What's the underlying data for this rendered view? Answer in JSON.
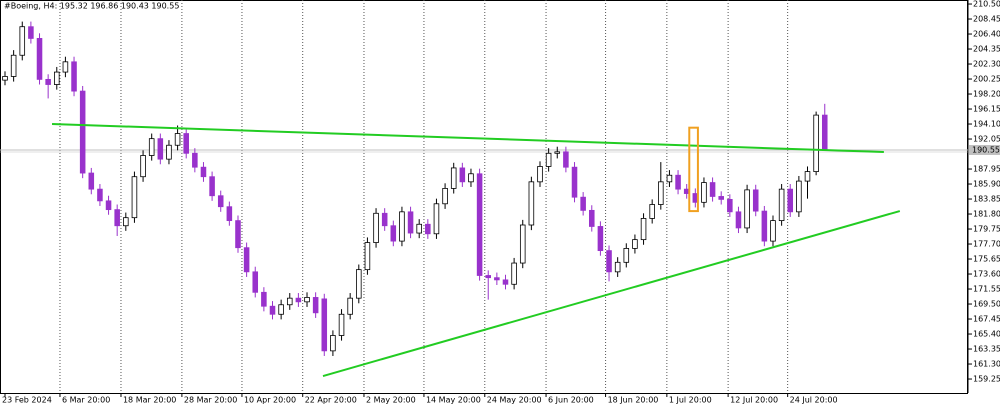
{
  "chart_data": {
    "type": "candlestick",
    "title": "#Boeing, H4:  195.32 196.86 190.43 190.55",
    "up_color": "#ffffff",
    "down_color": "#9932cc",
    "bid_color": "#c0c0c0",
    "xlim": [
      -0.58,
      111.6
    ],
    "ylim": [
      157.34,
      211.05
    ],
    "xgrid": true,
    "xticks": [
      {
        "value": 0,
        "label": "23 Feb 2024"
      },
      {
        "value": 6.37,
        "label": "6 Mar 20:00"
      },
      {
        "value": 13.44,
        "label": "18 Mar 20:00"
      },
      {
        "value": 20.5,
        "label": "28 Mar 20:00"
      },
      {
        "value": 27.46,
        "label": "10 Apr 20:00"
      },
      {
        "value": 34.5,
        "label": "22 Apr 20:00"
      },
      {
        "value": 41.6,
        "label": "2 May 20:00"
      },
      {
        "value": 48.55,
        "label": "14 May 20:00"
      },
      {
        "value": 55.6,
        "label": "24 May 20:00"
      },
      {
        "value": 62.7,
        "label": "6 Jun 20:00"
      },
      {
        "value": 69.6,
        "label": "18 Jun 20:00"
      },
      {
        "value": 76.7,
        "label": "1 Jul 20:00"
      },
      {
        "value": 83.8,
        "label": "12 Jul 20:00"
      },
      {
        "value": 90.7,
        "label": "24 Jul 20:00"
      }
    ],
    "yticks": [
      {
        "value": 210.5,
        "label": "210.50"
      },
      208.45,
      {
        "value": 206.4,
        "label": "206.40"
      },
      204.35,
      {
        "value": 202.3,
        "label": "202.30"
      },
      200.25,
      {
        "value": 198.2,
        "label": "198.20"
      },
      196.15,
      {
        "value": 194.1,
        "label": "194.10"
      },
      192.05,
      187.95,
      {
        "value": 185.9,
        "label": "185.90"
      },
      183.85,
      {
        "value": 181.8,
        "label": "181.80"
      },
      179.75,
      {
        "value": 177.7,
        "label": "177.70"
      },
      175.65,
      {
        "value": 173.6,
        "label": "173.60"
      },
      171.55,
      {
        "value": 169.5,
        "label": "169.50"
      },
      167.45,
      {
        "value": 165.4,
        "label": "165.40"
      },
      163.35,
      {
        "value": 161.3,
        "label": "161.30"
      },
      159.25
    ],
    "open": [
      200.1,
      200.6,
      203.5,
      207.4,
      205.8,
      200.2,
      199.5,
      201.2,
      202.6,
      198.6,
      187.4,
      185.2,
      183.6,
      182.4,
      180.2,
      181.3,
      186.9,
      189.8,
      192.1,
      189.3,
      191.2,
      192.8,
      190.1,
      188.2,
      186.9,
      184.3,
      182.8,
      180.9,
      177.2,
      173.9,
      171.1,
      169.2,
      168.1,
      169.4,
      170.3,
      169.8,
      170.4,
      170.2,
      163.1,
      165.2,
      168.1,
      170.3,
      174.2,
      177.9,
      181.9,
      180.2,
      178.1,
      182.1,
      179.2,
      180.4,
      179.1,
      183.2,
      185.3,
      188.1,
      186.2,
      187.3,
      173.4,
      173.1,
      172.8,
      172.2,
      175.1,
      180.3,
      186.2,
      188.3,
      190.1,
      190.3,
      188.2,
      184.1,
      182.3,
      180.1,
      176.8,
      173.9,
      175.2,
      177.1,
      178.3,
      181.2,
      183.1,
      186.2,
      187.1,
      185.2,
      184.6,
      183.4,
      186.1,
      184.2,
      183.8,
      182.1,
      179.9,
      185.1,
      182.2,
      178.1,
      180.9,
      185.2,
      182.1,
      186.3,
      187.6,
      195.32
    ],
    "high": [
      201.3,
      204.2,
      208.1,
      208.1,
      206.5,
      200.9,
      201.9,
      203.3,
      203.3,
      199.3,
      188.1,
      185.9,
      184.3,
      183.1,
      182.0,
      187.6,
      190.5,
      192.8,
      192.8,
      191.9,
      193.9,
      193.5,
      190.8,
      188.9,
      187.6,
      185.0,
      183.5,
      181.6,
      177.9,
      174.6,
      171.8,
      169.9,
      170.1,
      171.0,
      171.0,
      171.1,
      171.1,
      170.9,
      165.9,
      168.8,
      171.0,
      174.9,
      178.6,
      182.6,
      182.6,
      180.9,
      182.8,
      182.8,
      181.1,
      181.1,
      183.9,
      186.0,
      188.8,
      188.8,
      188.0,
      188.0,
      174.1,
      173.8,
      173.5,
      175.8,
      181.0,
      186.9,
      189.0,
      190.8,
      191.0,
      191.0,
      188.9,
      184.8,
      183.0,
      180.8,
      177.5,
      175.9,
      177.8,
      179.0,
      181.9,
      183.8,
      188.9,
      187.8,
      187.8,
      185.9,
      185.3,
      186.8,
      186.8,
      184.9,
      184.5,
      182.8,
      185.8,
      185.8,
      182.9,
      181.6,
      185.9,
      185.9,
      187.0,
      188.3,
      195.8,
      196.86
    ],
    "low": [
      199.4,
      199.9,
      202.8,
      205.1,
      199.5,
      197.6,
      198.8,
      200.5,
      197.9,
      186.7,
      184.5,
      182.9,
      181.7,
      178.8,
      179.5,
      180.6,
      186.2,
      189.1,
      188.6,
      188.6,
      190.5,
      189.4,
      187.5,
      186.2,
      183.6,
      182.1,
      180.2,
      176.5,
      173.2,
      170.4,
      168.5,
      167.4,
      167.4,
      168.7,
      169.1,
      169.1,
      167.6,
      162.4,
      162.4,
      164.5,
      167.4,
      169.6,
      173.5,
      177.2,
      179.5,
      177.4,
      177.4,
      178.5,
      178.5,
      178.4,
      178.4,
      182.5,
      184.6,
      185.5,
      185.5,
      172.7,
      170.1,
      172.1,
      171.5,
      171.5,
      174.4,
      179.6,
      185.5,
      187.6,
      189.4,
      187.5,
      183.4,
      181.6,
      179.4,
      176.1,
      172.6,
      173.2,
      174.5,
      176.4,
      177.6,
      180.5,
      182.4,
      185.5,
      184.5,
      183.9,
      182.7,
      182.7,
      183.5,
      183.1,
      181.4,
      179.2,
      179.2,
      181.5,
      177.4,
      177.4,
      180.2,
      181.4,
      181.4,
      183.9,
      187.1,
      190.43
    ],
    "close": [
      200.6,
      203.5,
      207.4,
      205.8,
      200.2,
      199.5,
      201.2,
      202.6,
      198.6,
      187.4,
      185.2,
      183.6,
      182.4,
      180.2,
      181.3,
      186.9,
      189.8,
      192.1,
      189.3,
      191.2,
      192.8,
      190.1,
      188.2,
      186.9,
      184.3,
      182.8,
      180.9,
      177.2,
      173.9,
      171.1,
      169.2,
      168.1,
      169.4,
      170.3,
      169.8,
      170.4,
      168.3,
      163.1,
      165.2,
      168.1,
      170.3,
      174.2,
      177.9,
      181.9,
      180.2,
      178.1,
      182.1,
      179.2,
      180.4,
      179.1,
      183.2,
      185.3,
      188.1,
      186.2,
      187.3,
      173.4,
      173.1,
      172.8,
      172.2,
      175.1,
      180.3,
      186.2,
      188.3,
      190.1,
      190.3,
      188.2,
      184.1,
      182.3,
      180.1,
      176.8,
      173.9,
      175.2,
      177.1,
      178.3,
      181.2,
      183.1,
      186.2,
      187.1,
      185.2,
      184.6,
      183.4,
      186.1,
      184.2,
      183.8,
      182.1,
      179.9,
      185.1,
      182.2,
      178.1,
      180.9,
      185.2,
      182.1,
      186.3,
      187.6,
      195.32,
      190.55
    ],
    "lines": [
      {
        "x": [
          5.45,
          101.85
        ],
        "y": [
          194.1,
          190.27
        ],
        "color": "#22cc22"
      },
      {
        "x": [
          36.85,
          103.7
        ],
        "y": [
          159.66,
          182.21
        ],
        "color": "#22cc22"
      }
    ],
    "highlight": {
      "x": [
        79.3,
        80.3
      ],
      "y": [
        182.2,
        193.6
      ],
      "color": "#f0a020"
    }
  }
}
